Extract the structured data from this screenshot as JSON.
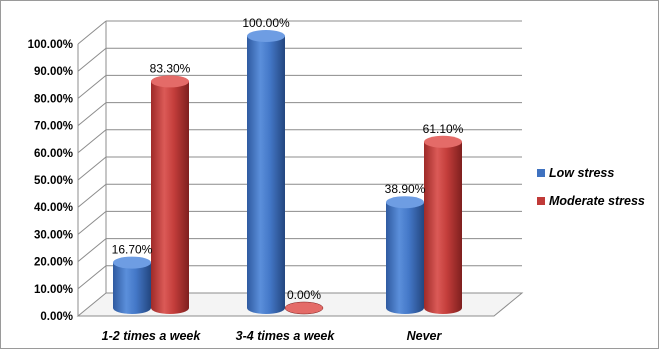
{
  "chart_data": {
    "type": "bar",
    "title": "",
    "xlabel": "",
    "ylabel": "",
    "categories": [
      "1-2 times a week",
      "3-4 times a week",
      "Never"
    ],
    "series": [
      {
        "name": "Low stress",
        "values": [
          16.7,
          100.0,
          38.9
        ],
        "labels": [
          "16.70%",
          "100.00%",
          "38.90%"
        ],
        "color": "#3f72c0"
      },
      {
        "name": "Moderate stress",
        "values": [
          83.3,
          0.0,
          61.1
        ],
        "labels": [
          "83.30%",
          "0.00%",
          "61.10%"
        ],
        "color": "#c03a38"
      }
    ],
    "yticks": [
      "0.00%",
      "10.00%",
      "20.00%",
      "30.00%",
      "40.00%",
      "50.00%",
      "60.00%",
      "70.00%",
      "80.00%",
      "90.00%",
      "100.00%"
    ],
    "ylim": [
      0,
      100
    ],
    "grid": true,
    "legend_position": "right"
  }
}
